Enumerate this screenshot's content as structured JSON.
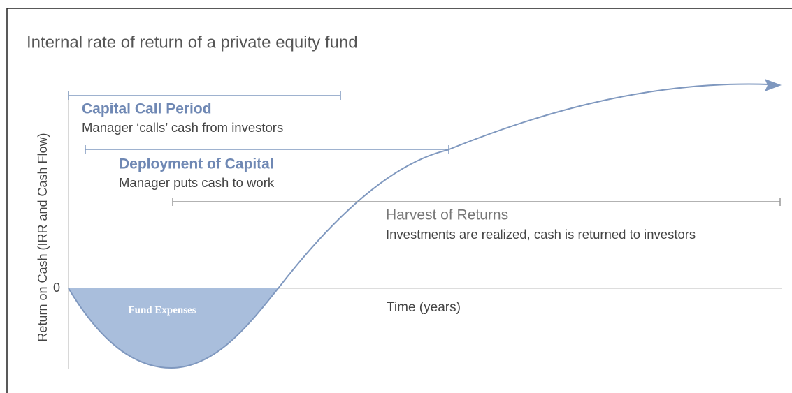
{
  "title": "Internal rate of return of a private equity fund",
  "y_axis_label": "Return on Cash (IRR and Cash Flow)",
  "zero_label": "0",
  "phases": [
    {
      "title": "Capital Call Period",
      "description": "Manager ‘calls’ cash from investors"
    },
    {
      "title": "Deployment of Capital",
      "description": "Manager puts cash to work"
    },
    {
      "title": "Harvest of Returns",
      "description": "Investments are realized, cash is returned to investors"
    }
  ],
  "fund_expenses_label": "Fund Expenses",
  "x_axis_label": "Time (years)"
}
